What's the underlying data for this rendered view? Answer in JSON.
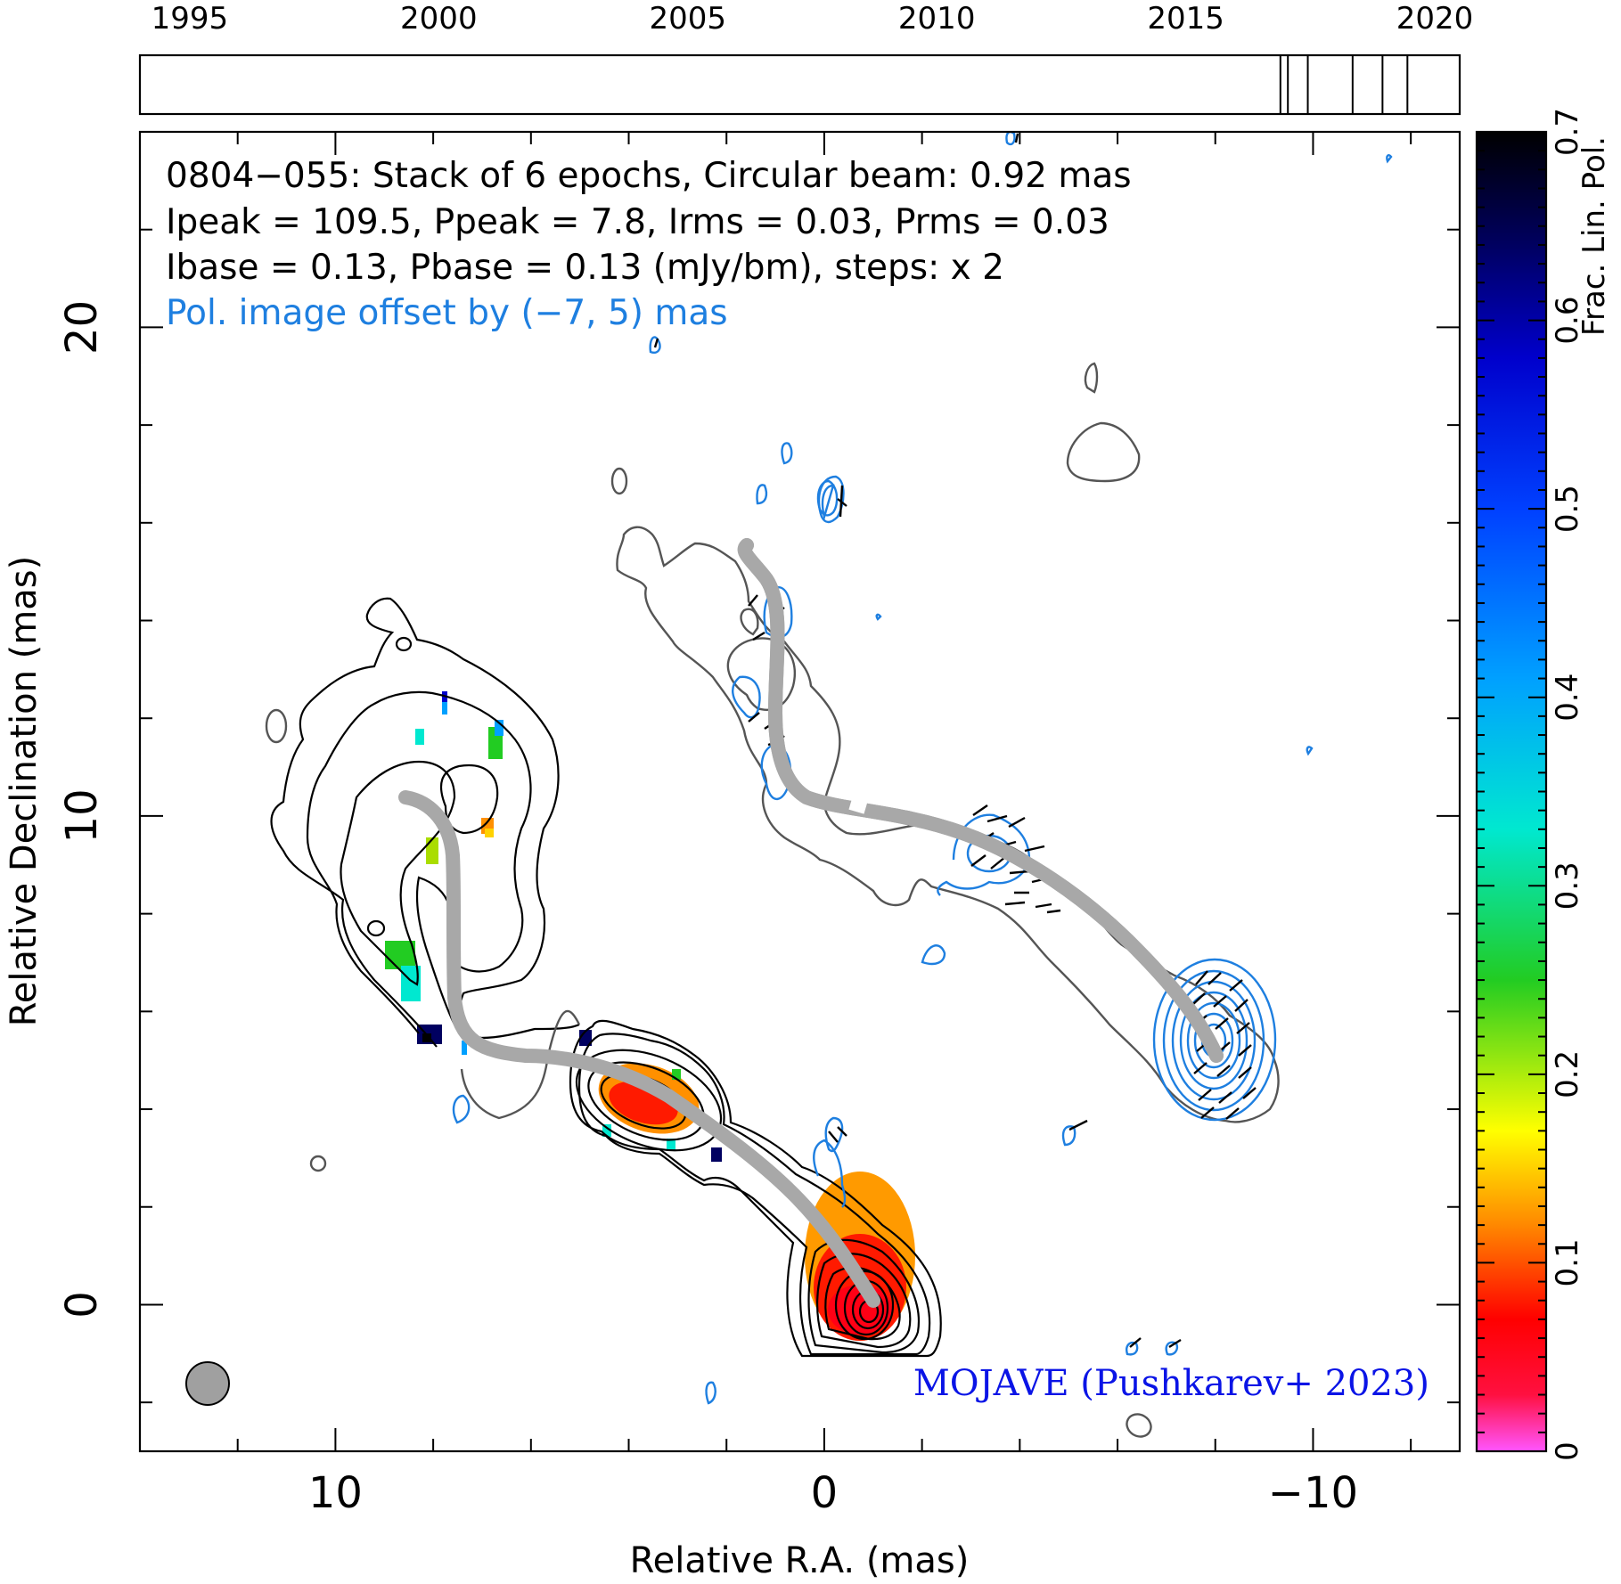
{
  "chart_data": {
    "type": "heatmap",
    "source_label": "0804-055",
    "annotation_lines": [
      "0804−055: Stack of 6 epochs, Circular beam: 0.92 mas",
      "Ipeak = 109.5, Ppeak = 7.8, Irms = 0.03, Prms = 0.03",
      "Ibase = 0.13, Pbase = 0.13 (mJy/bm), steps: x 2"
    ],
    "offset_note": "Pol. image offset by (−7, 5) mas",
    "credit": "MOJAVE (Pushkarev+ 2023)",
    "xlabel": "Relative R.A. (mas)",
    "ylabel": "Relative Declination (mas)",
    "xlim": [
      14,
      -13
    ],
    "ylim": [
      -3,
      24
    ],
    "xticks_major": [
      10,
      0,
      -10
    ],
    "xtick_labels": [
      "10",
      "0",
      "−10"
    ],
    "yticks_major": [
      0,
      10,
      20
    ],
    "ytick_labels": [
      "0",
      "10",
      "20"
    ],
    "beam_diameter_mas": 0.92,
    "epoch_axis": {
      "range": [
        1994,
        2020.5
      ],
      "tick_years": [
        1995,
        2000,
        2005,
        2010,
        2015,
        2020
      ],
      "tick_labels": [
        "1995",
        "2000",
        "2005",
        "2010",
        "2015",
        "2020"
      ],
      "epochs": [
        2016.9,
        2017.05,
        2017.45,
        2018.35,
        2018.95,
        2019.45
      ]
    },
    "colorbar": {
      "label": "Frac. Lin. Pol.",
      "range": [
        0,
        0.7
      ],
      "tick_values": [
        0,
        0.1,
        0.2,
        0.3,
        0.4,
        0.5,
        0.6,
        0.7
      ],
      "tick_labels": [
        "0",
        "0.1",
        "0.2",
        "0.3",
        "0.4",
        "0.5",
        "0.6",
        "0.7"
      ],
      "stops": [
        {
          "v": 0.0,
          "color": "#ff55ff"
        },
        {
          "v": 0.03,
          "color": "#ff1040"
        },
        {
          "v": 0.07,
          "color": "#ff0000"
        },
        {
          "v": 0.12,
          "color": "#ff8800"
        },
        {
          "v": 0.17,
          "color": "#ffff00"
        },
        {
          "v": 0.25,
          "color": "#22cc22"
        },
        {
          "v": 0.33,
          "color": "#00e8d0"
        },
        {
          "v": 0.41,
          "color": "#00a0ff"
        },
        {
          "v": 0.5,
          "color": "#0040ff"
        },
        {
          "v": 0.58,
          "color": "#0000cc"
        },
        {
          "v": 0.64,
          "color": "#000060"
        },
        {
          "v": 0.7,
          "color": "#000000"
        }
      ]
    },
    "colors": {
      "stokes_i_contour": "#000000",
      "lowest_contour": "#555555",
      "polarization_contour": "#1e7fe0",
      "ridge_line": "#a8a8a8",
      "offset_note": "#1e7fe0",
      "credit": "#0a14e6",
      "beam": "#a0a0a0"
    }
  }
}
